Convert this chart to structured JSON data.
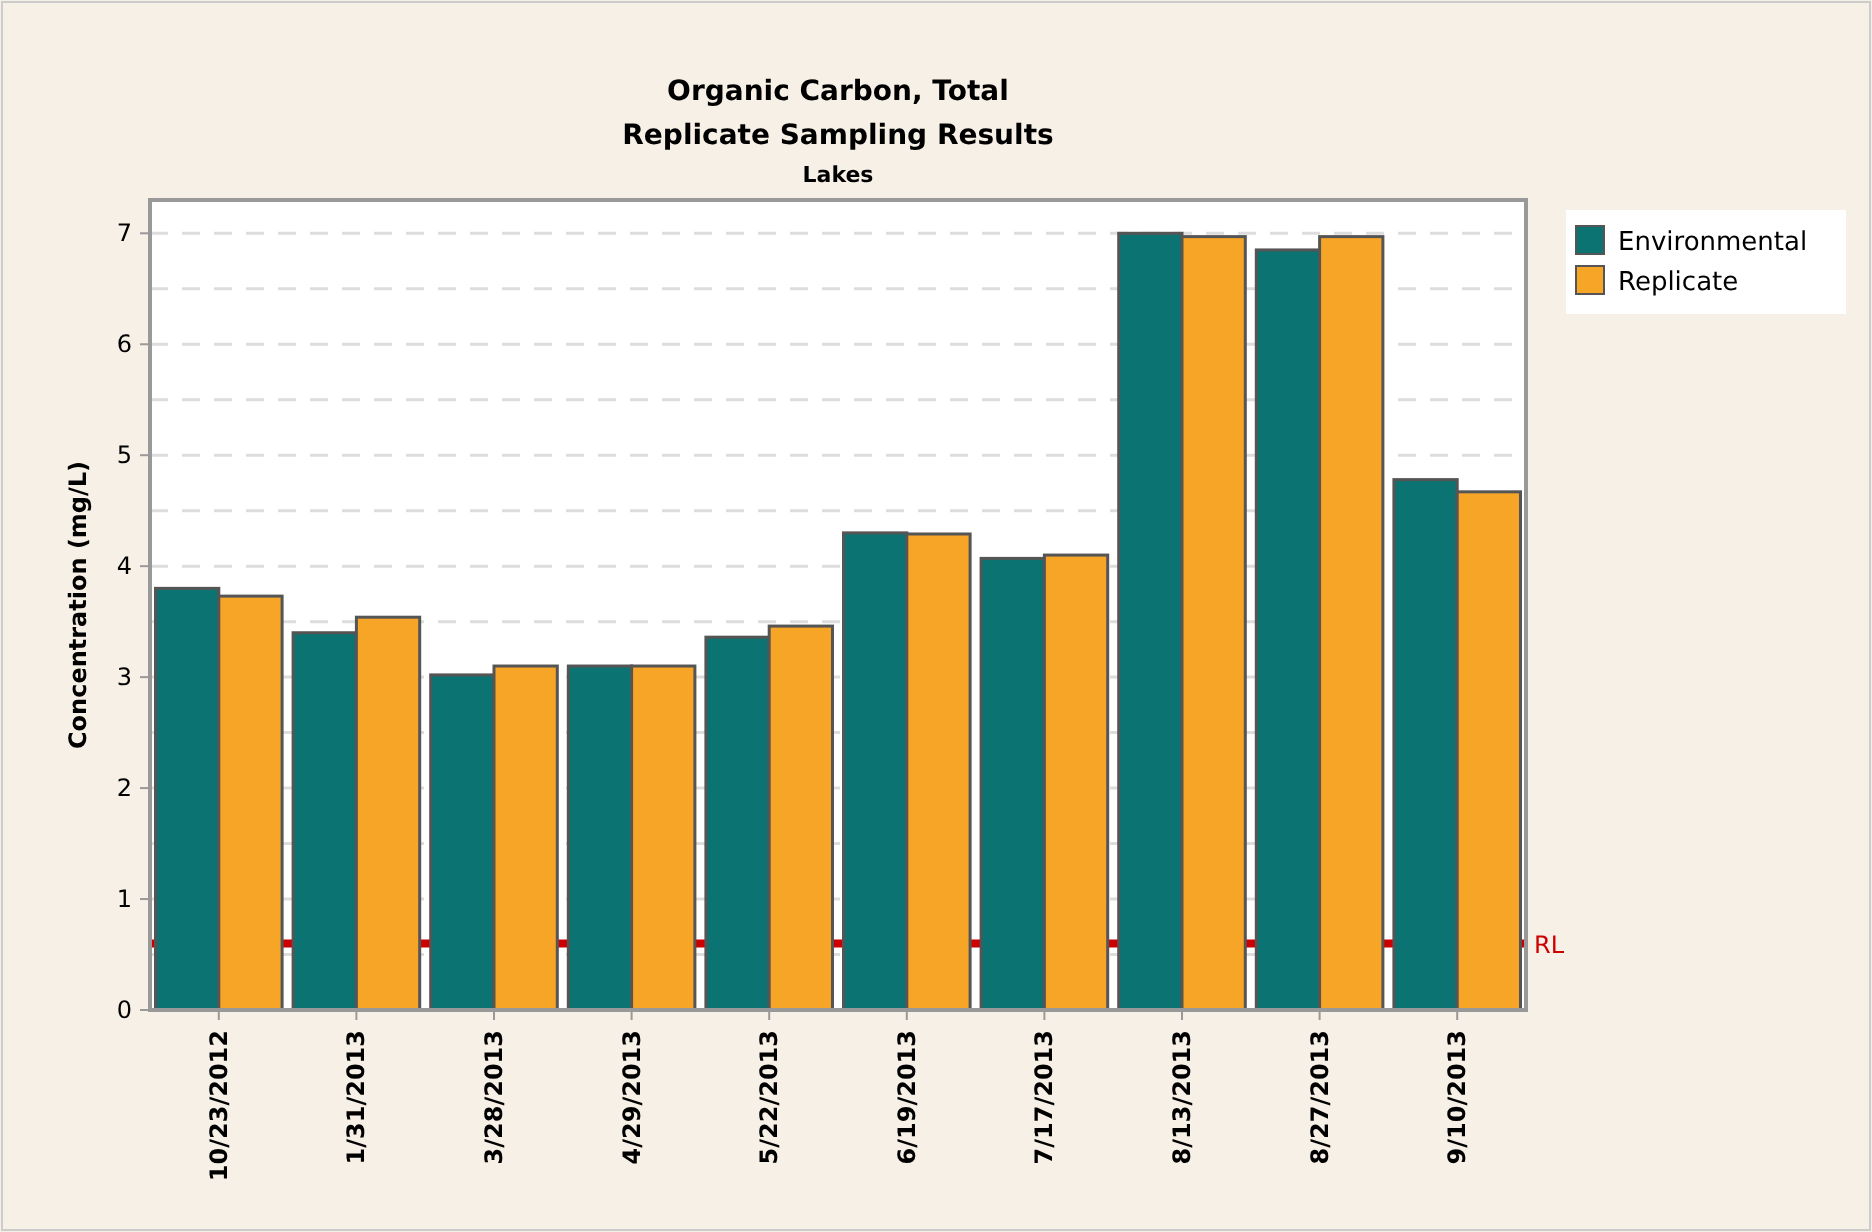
{
  "chart_data": {
    "type": "bar",
    "title": "Organic Carbon, Total",
    "subtitle": "Replicate Sampling Results",
    "annotations": [
      "Lakes"
    ],
    "ylabel": "Concentration (mg/L)",
    "categories": [
      "10/23/2012",
      "1/31/2013",
      "3/28/2013",
      "4/29/2013",
      "5/22/2013",
      "6/19/2013",
      "7/17/2013",
      "8/13/2013",
      "8/27/2013",
      "9/10/2013"
    ],
    "series": [
      {
        "name": "Environmental",
        "color": "#0b7371",
        "values": [
          3.8,
          3.4,
          3.02,
          3.1,
          3.36,
          4.3,
          4.07,
          7.0,
          6.85,
          4.78
        ]
      },
      {
        "name": "Replicate",
        "color": "#f6a527",
        "values": [
          3.73,
          3.54,
          3.1,
          3.1,
          3.46,
          4.29,
          4.1,
          6.97,
          6.97,
          4.67
        ]
      }
    ],
    "ylim": [
      0,
      7.3
    ],
    "yticks": [
      0,
      {
        "value": 0.5,
        "label": null
      },
      1,
      {
        "value": 1.5,
        "label": null
      },
      2,
      {
        "value": 2.5,
        "label": null
      },
      3,
      {
        "value": 3.5,
        "label": null
      },
      4,
      {
        "value": 4.5,
        "label": null
      },
      5,
      {
        "value": 5.5,
        "label": null
      },
      6,
      {
        "value": 6.5,
        "label": null
      },
      7
    ],
    "grid": "y",
    "legend": "top right",
    "ref_lines": [
      {
        "axis": "y",
        "value": 0.6,
        "label": "RL",
        "color": "#cc0000"
      }
    ]
  }
}
